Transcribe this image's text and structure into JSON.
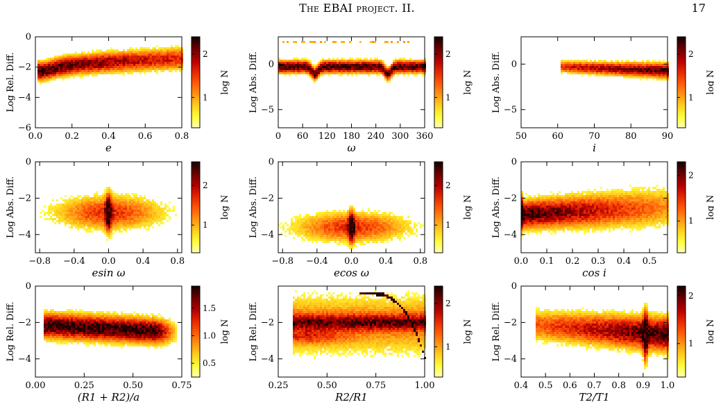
{
  "header": {
    "title": "The EBAI project. II.",
    "page_number": "17"
  },
  "colormap": [
    "#ffffc8",
    "#ffff40",
    "#ffd21e",
    "#ff9614",
    "#ff5a0a",
    "#e62800",
    "#b40000",
    "#6e0000",
    "#1e0000"
  ],
  "chart_data": [
    {
      "type": "heatmap",
      "xlabel": "e",
      "ylabel": "Log Rel. Diff.",
      "xlim": [
        0,
        0.8
      ],
      "ylim": [
        -6,
        0
      ],
      "xticks": [
        0,
        0.2,
        0.4,
        0.6,
        0.8
      ],
      "xtick_labels": [
        "0.0",
        "0.2",
        "0.4",
        "0.6",
        "0.8"
      ],
      "yticks": [
        0,
        -2,
        -4,
        -6
      ],
      "ytick_labels": [
        "0",
        "−2",
        "−4",
        "−6"
      ],
      "colorbar": {
        "label": "log N",
        "ticks": [
          1,
          2
        ],
        "tick_labels": [
          "1",
          "2"
        ],
        "max": 2.4
      }
    },
    {
      "type": "heatmap",
      "xlabel": "ω",
      "ylabel": "Log Abs. Diff.",
      "xlim": [
        0,
        360
      ],
      "ylim": [
        -7,
        3
      ],
      "xticks": [
        0,
        60,
        120,
        180,
        240,
        300,
        360
      ],
      "xtick_labels": [
        "0",
        "60",
        "120",
        "180",
        "240",
        "300",
        "360"
      ],
      "yticks": [
        0,
        -5
      ],
      "ytick_labels": [
        "0",
        "−5"
      ],
      "colorbar": {
        "label": "log N",
        "ticks": [
          1,
          2
        ],
        "tick_labels": [
          "1",
          "2"
        ],
        "max": 2.4
      }
    },
    {
      "type": "heatmap",
      "xlabel": "i",
      "ylabel": "Log Abs. Diff.",
      "xlim": [
        50,
        90
      ],
      "ylim": [
        -7,
        3
      ],
      "xticks": [
        50,
        60,
        70,
        80,
        90
      ],
      "xtick_labels": [
        "50",
        "60",
        "70",
        "80",
        "90"
      ],
      "yticks": [
        0,
        -5
      ],
      "ytick_labels": [
        "0",
        "−5"
      ],
      "colorbar": {
        "label": "log N",
        "ticks": [
          1,
          2
        ],
        "tick_labels": [
          "1",
          "2"
        ],
        "max": 2.4
      }
    },
    {
      "type": "heatmap",
      "xlabel": "esin ω",
      "ylabel": "Log Abs. Diff.",
      "xlim": [
        -0.85,
        0.85
      ],
      "ylim": [
        -5,
        0
      ],
      "xticks": [
        -0.8,
        -0.4,
        0,
        0.4,
        0.8
      ],
      "xtick_labels": [
        "−0.8",
        "−0.4",
        "0.0",
        "0.4",
        "0.8"
      ],
      "yticks": [
        0,
        -2,
        -4
      ],
      "ytick_labels": [
        "0",
        "−2",
        "−4"
      ],
      "colorbar": {
        "label": "log N",
        "ticks": [
          1,
          2
        ],
        "tick_labels": [
          "1",
          "2"
        ],
        "max": 2.6
      }
    },
    {
      "type": "heatmap",
      "xlabel": "ecos ω",
      "ylabel": "Log Abs. Diff.",
      "xlim": [
        -0.85,
        0.85
      ],
      "ylim": [
        -5,
        0
      ],
      "xticks": [
        -0.8,
        -0.4,
        0,
        0.4,
        0.8
      ],
      "xtick_labels": [
        "−0.8",
        "−0.4",
        "0.0",
        "0.4",
        "0.8"
      ],
      "yticks": [
        0,
        -2,
        -4
      ],
      "ytick_labels": [
        "0",
        "−2",
        "−4"
      ],
      "colorbar": {
        "label": "log N",
        "ticks": [
          1,
          2
        ],
        "tick_labels": [
          "1",
          "2"
        ],
        "max": 2.6
      }
    },
    {
      "type": "heatmap",
      "xlabel": "cos i",
      "ylabel": "Log Abs. Diff.",
      "xlim": [
        0,
        0.57
      ],
      "ylim": [
        -5,
        0
      ],
      "xticks": [
        0,
        0.1,
        0.2,
        0.3,
        0.4,
        0.5
      ],
      "xtick_labels": [
        "0.0",
        "0.1",
        "0.2",
        "0.3",
        "0.4",
        "0.5"
      ],
      "yticks": [
        0,
        -2,
        -4
      ],
      "ytick_labels": [
        "0",
        "−2",
        "−4"
      ],
      "colorbar": {
        "label": "log N",
        "ticks": [
          1,
          2
        ],
        "tick_labels": [
          "1",
          "2"
        ],
        "max": 2.3
      }
    },
    {
      "type": "heatmap",
      "xlabel": "(R1 + R2)/a",
      "ylabel": "Log Rel. Diff.",
      "xlim": [
        0,
        0.75
      ],
      "ylim": [
        -5,
        0
      ],
      "xticks": [
        0,
        0.25,
        0.5,
        0.75
      ],
      "xtick_labels": [
        "0.00",
        "0.25",
        "0.50",
        "0.75"
      ],
      "yticks": [
        0,
        -2,
        -4
      ],
      "ytick_labels": [
        "0",
        "−2",
        "−4"
      ],
      "colorbar": {
        "label": "log N",
        "ticks": [
          0.5,
          1.0,
          1.5
        ],
        "tick_labels": [
          "0.5",
          "1.0",
          "1.5"
        ],
        "max": 1.9
      }
    },
    {
      "type": "heatmap",
      "xlabel": "R2/R1",
      "ylabel": "Log Rel. Diff.",
      "xlim": [
        0.25,
        1.0
      ],
      "ylim": [
        -5,
        0
      ],
      "xticks": [
        0.25,
        0.5,
        0.75,
        1.0
      ],
      "xtick_labels": [
        "0.25",
        "0.50",
        "0.75",
        "1.00"
      ],
      "yticks": [
        -2,
        -4
      ],
      "ytick_labels": [
        "−2",
        "−4"
      ],
      "colorbar": {
        "label": "log N",
        "ticks": [
          1,
          2
        ],
        "tick_labels": [
          "1",
          "2"
        ],
        "max": 2.4
      }
    },
    {
      "type": "heatmap",
      "xlabel": "T2/T1",
      "ylabel": "Log Rel. Diff.",
      "xlim": [
        0.4,
        1.0
      ],
      "ylim": [
        -5,
        0
      ],
      "xticks": [
        0.4,
        0.5,
        0.6,
        0.7,
        0.8,
        0.9,
        1.0
      ],
      "xtick_labels": [
        "0.4",
        "0.5",
        "0.6",
        "0.7",
        "0.8",
        "0.9",
        "1.0"
      ],
      "yticks": [
        0,
        -2,
        -4
      ],
      "ytick_labels": [
        "0",
        "−2",
        "−4"
      ],
      "colorbar": {
        "label": "log N",
        "ticks": [
          1,
          2
        ],
        "tick_labels": [
          "1",
          "2"
        ],
        "max": 2.2
      }
    }
  ]
}
